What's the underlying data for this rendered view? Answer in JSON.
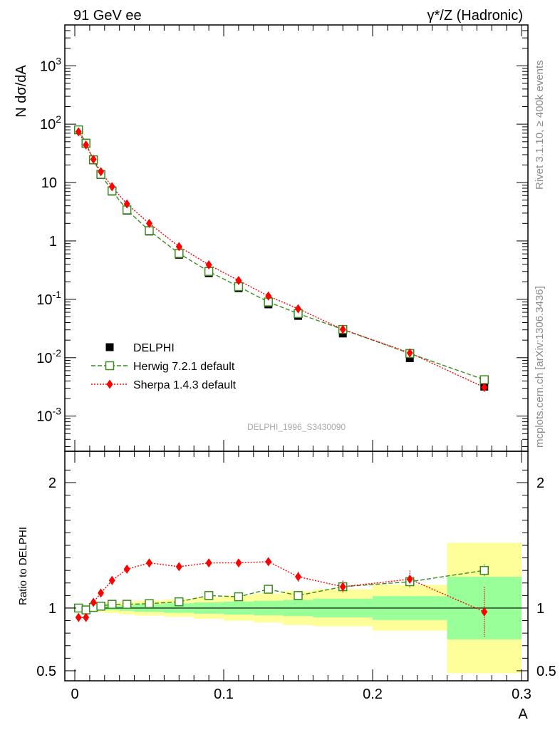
{
  "header": {
    "left": "91 GeV ee",
    "right_prefix": "γ*/Z",
    "right_suffix": " (Hadronic)"
  },
  "side_labels": {
    "rivet": "Rivet 3.1.10, ≥ 400k events",
    "mcplots": "mcplots.cern.ch [arXiv:1306.3436]"
  },
  "watermark": "DELPHI_1996_S3430090",
  "colors": {
    "data": "#000000",
    "herwig": "#3a8a1e",
    "sherpa": "#ff0000",
    "band_stat": "#99ff99",
    "band_total": "#ffff99"
  },
  "chart_data": [
    {
      "type": "scatter",
      "panel": "main",
      "ylabel": "N dσ/dA",
      "yscale": "log",
      "ylim": [
        0.00025,
        5000
      ],
      "y_ticks": [
        {
          "base": "10",
          "exp": "-3",
          "value": 0.001
        },
        {
          "base": "10",
          "exp": "-2",
          "value": 0.01
        },
        {
          "base": "10",
          "exp": "-1",
          "value": 0.1
        },
        {
          "base": "1",
          "exp": "",
          "value": 1
        },
        {
          "base": "10",
          "exp": "",
          "value": 10
        },
        {
          "base": "10",
          "exp": "2",
          "value": 100
        },
        {
          "base": "10",
          "exp": "3",
          "value": 1000
        }
      ],
      "xlim": [
        -0.0075,
        0.3
      ],
      "x": [
        0.0025,
        0.0075,
        0.0125,
        0.0175,
        0.025,
        0.035,
        0.05,
        0.07,
        0.09,
        0.11,
        0.13,
        0.15,
        0.18,
        0.225,
        0.275
      ],
      "bin_edges": [
        0,
        0.005,
        0.01,
        0.015,
        0.02,
        0.03,
        0.04,
        0.06,
        0.08,
        0.1,
        0.12,
        0.14,
        0.16,
        0.2,
        0.25,
        0.3
      ],
      "legend_position": "lower-left",
      "series": [
        {
          "name": "DELPHI",
          "marker": "filled-square",
          "values": [
            80,
            48,
            24,
            13.5,
            7,
            3.3,
            1.45,
            0.58,
            0.28,
            0.155,
            0.082,
            0.052,
            0.026,
            0.0098,
            0.0032
          ]
        },
        {
          "name": "Herwig 7.2.1 default",
          "marker": "open-square",
          "line": "dashed",
          "values": [
            80,
            47,
            24.5,
            13.8,
            7.2,
            3.4,
            1.5,
            0.61,
            0.3,
            0.165,
            0.09,
            0.057,
            0.0305,
            0.0118,
            0.0042
          ]
        },
        {
          "name": "Sherpa 1.4.3 default",
          "marker": "diamond",
          "line": "dotted",
          "values": [
            74,
            44,
            25,
            15.3,
            8.5,
            4.3,
            2,
            0.8,
            0.39,
            0.21,
            0.114,
            0.069,
            0.0305,
            0.0121,
            0.0031
          ]
        }
      ]
    },
    {
      "type": "scatter",
      "panel": "ratio",
      "ylabel": "Ratio to DELPHI",
      "xlabel": "A",
      "ylim": [
        0.42,
        2.25
      ],
      "y_ticks": [
        {
          "label": "0.5",
          "value": 0.5
        },
        {
          "label": "1",
          "value": 1
        },
        {
          "label": "2",
          "value": 2
        }
      ],
      "x_ticks": [
        {
          "label": "0",
          "value": 0
        },
        {
          "label": "0.1",
          "value": 0.1
        },
        {
          "label": "0.2",
          "value": 0.2
        },
        {
          "label": "0.3",
          "value": 0.3
        }
      ],
      "xlim": [
        -0.0075,
        0.3
      ],
      "bands": {
        "edges": [
          0,
          0.005,
          0.01,
          0.015,
          0.02,
          0.03,
          0.04,
          0.06,
          0.08,
          0.1,
          0.12,
          0.14,
          0.16,
          0.2,
          0.25,
          0.3
        ],
        "stat_lo": [
          0.995,
          0.993,
          0.99,
          0.987,
          0.983,
          0.978,
          0.97,
          0.962,
          0.955,
          0.948,
          0.942,
          0.935,
          0.925,
          0.905,
          0.75
        ],
        "stat_hi": [
          1.005,
          1.007,
          1.01,
          1.013,
          1.017,
          1.022,
          1.03,
          1.038,
          1.045,
          1.052,
          1.058,
          1.065,
          1.075,
          1.095,
          1.25
        ],
        "tot_lo": [
          0.99,
          0.985,
          0.978,
          0.97,
          0.96,
          0.95,
          0.94,
          0.93,
          0.915,
          0.9,
          0.885,
          0.865,
          0.855,
          0.82,
          0.48
        ],
        "tot_hi": [
          1.01,
          1.015,
          1.022,
          1.03,
          1.04,
          1.05,
          1.06,
          1.07,
          1.085,
          1.1,
          1.115,
          1.135,
          1.15,
          1.185,
          1.52
        ]
      },
      "series": [
        {
          "name": "Herwig 7.2.1 default",
          "values": [
            1.0,
            0.985,
            1.005,
            1.015,
            1.03,
            1.03,
            1.035,
            1.05,
            1.1,
            1.09,
            1.15,
            1.1,
            1.17,
            1.21,
            1.3
          ],
          "errors": [
            0.01,
            0.01,
            0.01,
            0.01,
            0.01,
            0.01,
            0.01,
            0.012,
            0.012,
            0.012,
            0.015,
            0.015,
            0.02,
            0.03,
            0.05
          ]
        },
        {
          "name": "Sherpa 1.4.3 default",
          "values": [
            0.925,
            0.925,
            1.045,
            1.12,
            1.22,
            1.31,
            1.36,
            1.33,
            1.36,
            1.36,
            1.37,
            1.25,
            1.17,
            1.23,
            0.97
          ],
          "errors": [
            0.01,
            0.01,
            0.015,
            0.015,
            0.02,
            0.02,
            0.02,
            0.02,
            0.02,
            0.025,
            0.03,
            0.04,
            0.05,
            0.07,
            0.2
          ]
        }
      ]
    }
  ]
}
